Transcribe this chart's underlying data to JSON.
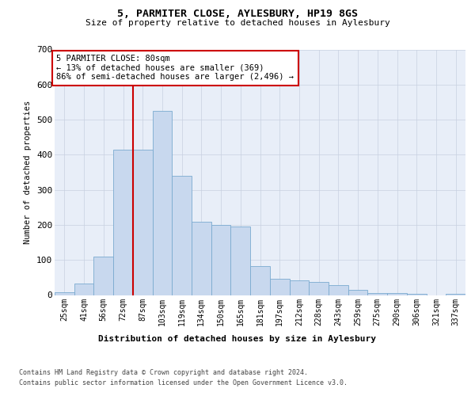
{
  "title": "5, PARMITER CLOSE, AYLESBURY, HP19 8GS",
  "subtitle": "Size of property relative to detached houses in Aylesbury",
  "xlabel": "Distribution of detached houses by size in Aylesbury",
  "ylabel": "Number of detached properties",
  "bar_labels": [
    "25sqm",
    "41sqm",
    "56sqm",
    "72sqm",
    "87sqm",
    "103sqm",
    "119sqm",
    "134sqm",
    "150sqm",
    "165sqm",
    "181sqm",
    "197sqm",
    "212sqm",
    "228sqm",
    "243sqm",
    "259sqm",
    "275sqm",
    "290sqm",
    "306sqm",
    "321sqm",
    "337sqm"
  ],
  "bar_values": [
    8,
    33,
    110,
    415,
    415,
    525,
    340,
    208,
    200,
    195,
    82,
    47,
    42,
    38,
    28,
    14,
    5,
    5,
    4,
    0,
    4
  ],
  "bar_color": "#c8d8ee",
  "bar_edgecolor": "#7aaad0",
  "vline_color": "#cc0000",
  "vline_x_index": 3.5,
  "annotation_text": "5 PARMITER CLOSE: 80sqm\n← 13% of detached houses are smaller (369)\n86% of semi-detached houses are larger (2,496) →",
  "annotation_box_facecolor": "#ffffff",
  "annotation_box_edgecolor": "#cc0000",
  "ylim_max": 700,
  "yticks": [
    0,
    100,
    200,
    300,
    400,
    500,
    600,
    700
  ],
  "plot_bg_color": "#e8eef8",
  "grid_color": "#c8d0e0",
  "footer1": "Contains HM Land Registry data © Crown copyright and database right 2024.",
  "footer2": "Contains public sector information licensed under the Open Government Licence v3.0."
}
